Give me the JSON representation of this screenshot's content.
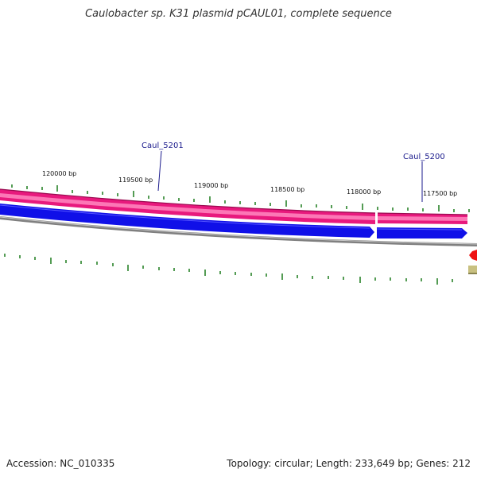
{
  "title": "Caulobacter sp. K31 plasmid pCAUL01, complete sequence",
  "footer": {
    "accession": "Accession: NC_010335",
    "summary": "Topology: circular; Length: 233,649 bp; Genes: 212"
  },
  "map": {
    "ticks": [
      {
        "label": "120000 bp"
      },
      {
        "label": "119500 bp"
      },
      {
        "label": "119000 bp"
      },
      {
        "label": "118500 bp"
      },
      {
        "label": "118000 bp"
      },
      {
        "label": "117500 bp"
      }
    ],
    "genes": [
      {
        "label": "Caul_5201"
      },
      {
        "label": "Caul_5200"
      }
    ],
    "colors": {
      "pink_track": "#e8197d",
      "pink_light": "#ff88c0",
      "blue_track": "#1010e8",
      "backbone": "#808080",
      "tick_green": "#1a7a1a",
      "red_marker": "#ee1111",
      "olive_marker": "#c8c080"
    }
  }
}
